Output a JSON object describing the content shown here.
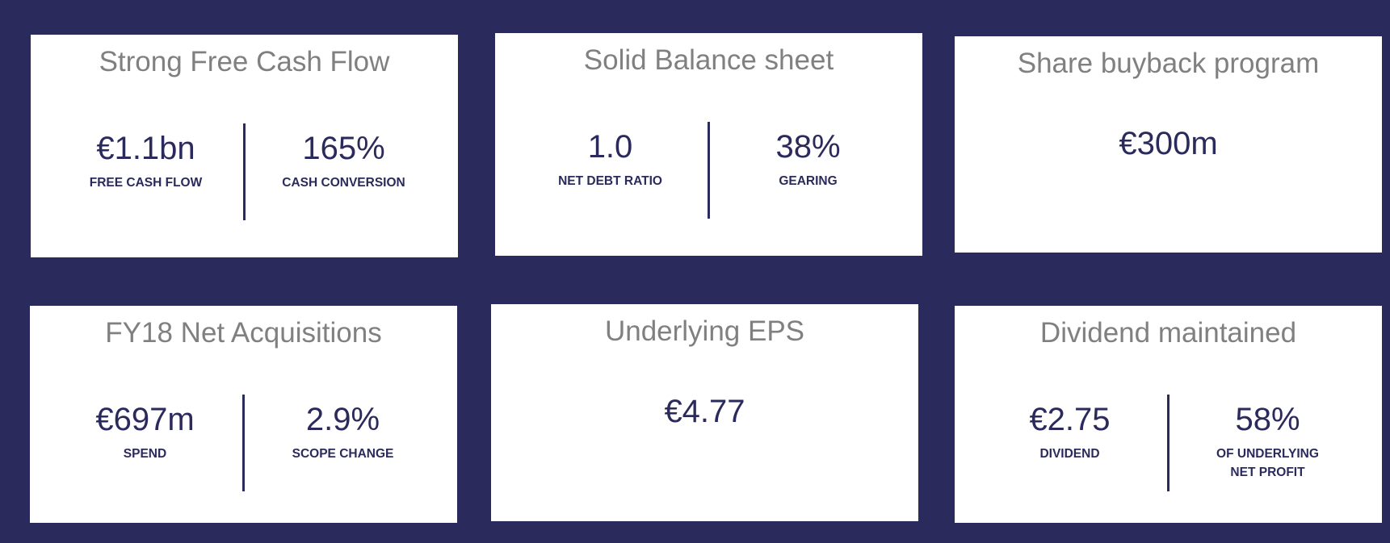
{
  "cards": [
    {
      "title": "Strong Free Cash Flow",
      "metrics": [
        {
          "value": "€1.1bn",
          "label": "FREE CASH FLOW"
        },
        {
          "value": "165%",
          "label": "CASH CONVERSION"
        }
      ]
    },
    {
      "title": "Solid Balance sheet",
      "metrics": [
        {
          "value": "1.0",
          "label": "NET DEBT RATIO"
        },
        {
          "value": "38%",
          "label": "GEARING"
        }
      ]
    },
    {
      "title": "Share buyback program",
      "metrics": [
        {
          "value": "€300m"
        }
      ]
    },
    {
      "title": "FY18 Net Acquisitions",
      "metrics": [
        {
          "value": "€697m",
          "label": "SPEND"
        },
        {
          "value": "2.9%",
          "label": "SCOPE CHANGE"
        }
      ]
    },
    {
      "title": "Underlying EPS",
      "metrics": [
        {
          "value": "€4.77"
        }
      ]
    },
    {
      "title": "Dividend maintained",
      "metrics": [
        {
          "value": "€2.75",
          "label": "DIVIDEND"
        },
        {
          "value": "58%",
          "label": "OF UNDERLYING NET PROFIT"
        }
      ]
    }
  ]
}
